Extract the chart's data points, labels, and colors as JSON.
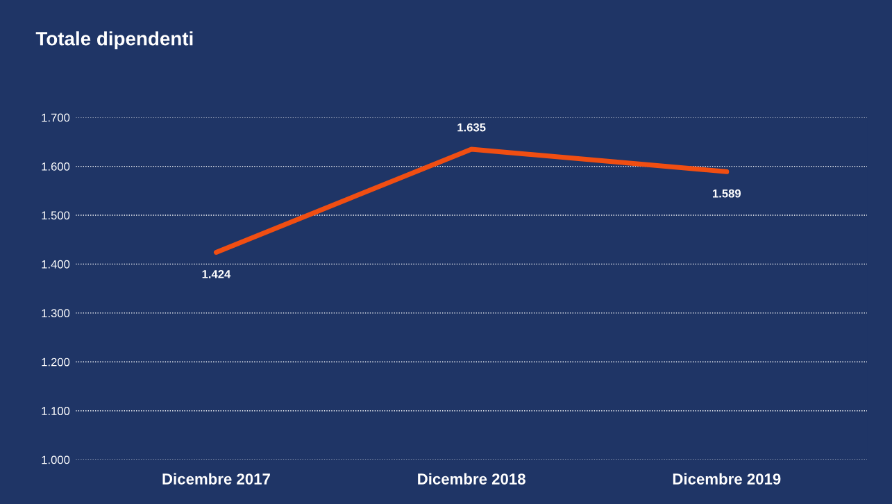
{
  "chart_data": {
    "type": "line",
    "title": "Totale dipendenti",
    "categories": [
      "Dicembre 2017",
      "Dicembre 2018",
      "Dicembre 2019"
    ],
    "series": [
      {
        "color": "#f04e12",
        "values": [
          1424,
          1635,
          1589
        ],
        "value_labels": [
          "1.424",
          "1.635",
          "1.589"
        ]
      }
    ],
    "ylim": [
      1000,
      1700
    ],
    "yticks": [
      {
        "value": 1000,
        "label": "1.000"
      },
      {
        "value": 1100,
        "label": "1.100"
      },
      {
        "value": 1200,
        "label": "1.200"
      },
      {
        "value": 1300,
        "label": "1.300"
      },
      {
        "value": 1400,
        "label": "1.400"
      },
      {
        "value": 1500,
        "label": "1.500"
      },
      {
        "value": 1600,
        "label": "1.600"
      },
      {
        "value": 1700,
        "label": "1.700"
      }
    ],
    "grid": "y",
    "marker": "none",
    "line_style": "solid"
  }
}
